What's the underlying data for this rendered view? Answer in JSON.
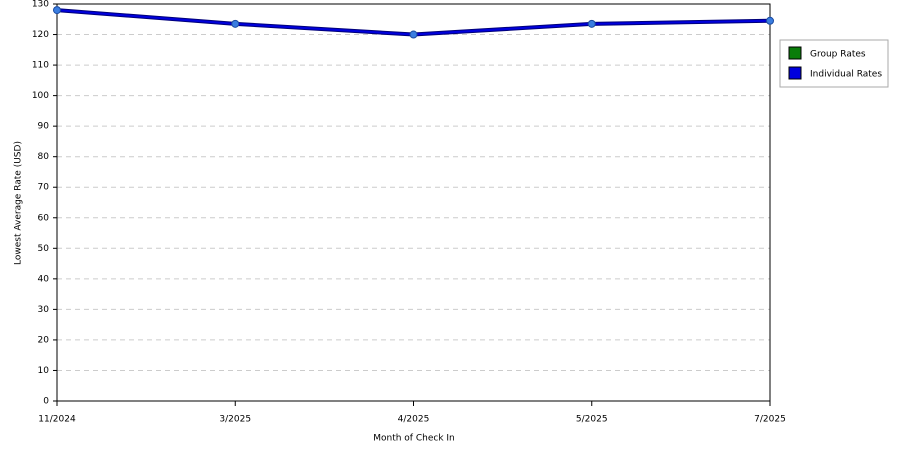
{
  "chart_data": {
    "type": "line",
    "x_label": "Month of Check In",
    "y_label": "Lowest Average Rate (USD)",
    "categories": [
      "11/2024",
      "3/2025",
      "4/2025",
      "5/2025",
      "7/2025"
    ],
    "series": [
      {
        "name": "Group Rates",
        "color": "#0a7d0a",
        "values": [
          null,
          null,
          null,
          null,
          null
        ]
      },
      {
        "name": "Individual Rates",
        "color": "#0000dd",
        "values": [
          128,
          123.5,
          120,
          123.5,
          124.5
        ]
      }
    ],
    "ylim": [
      0,
      130
    ],
    "yticks": [
      0,
      10,
      20,
      30,
      40,
      50,
      60,
      70,
      80,
      90,
      100,
      110,
      120,
      130
    ],
    "grid": true,
    "legend": "right"
  }
}
